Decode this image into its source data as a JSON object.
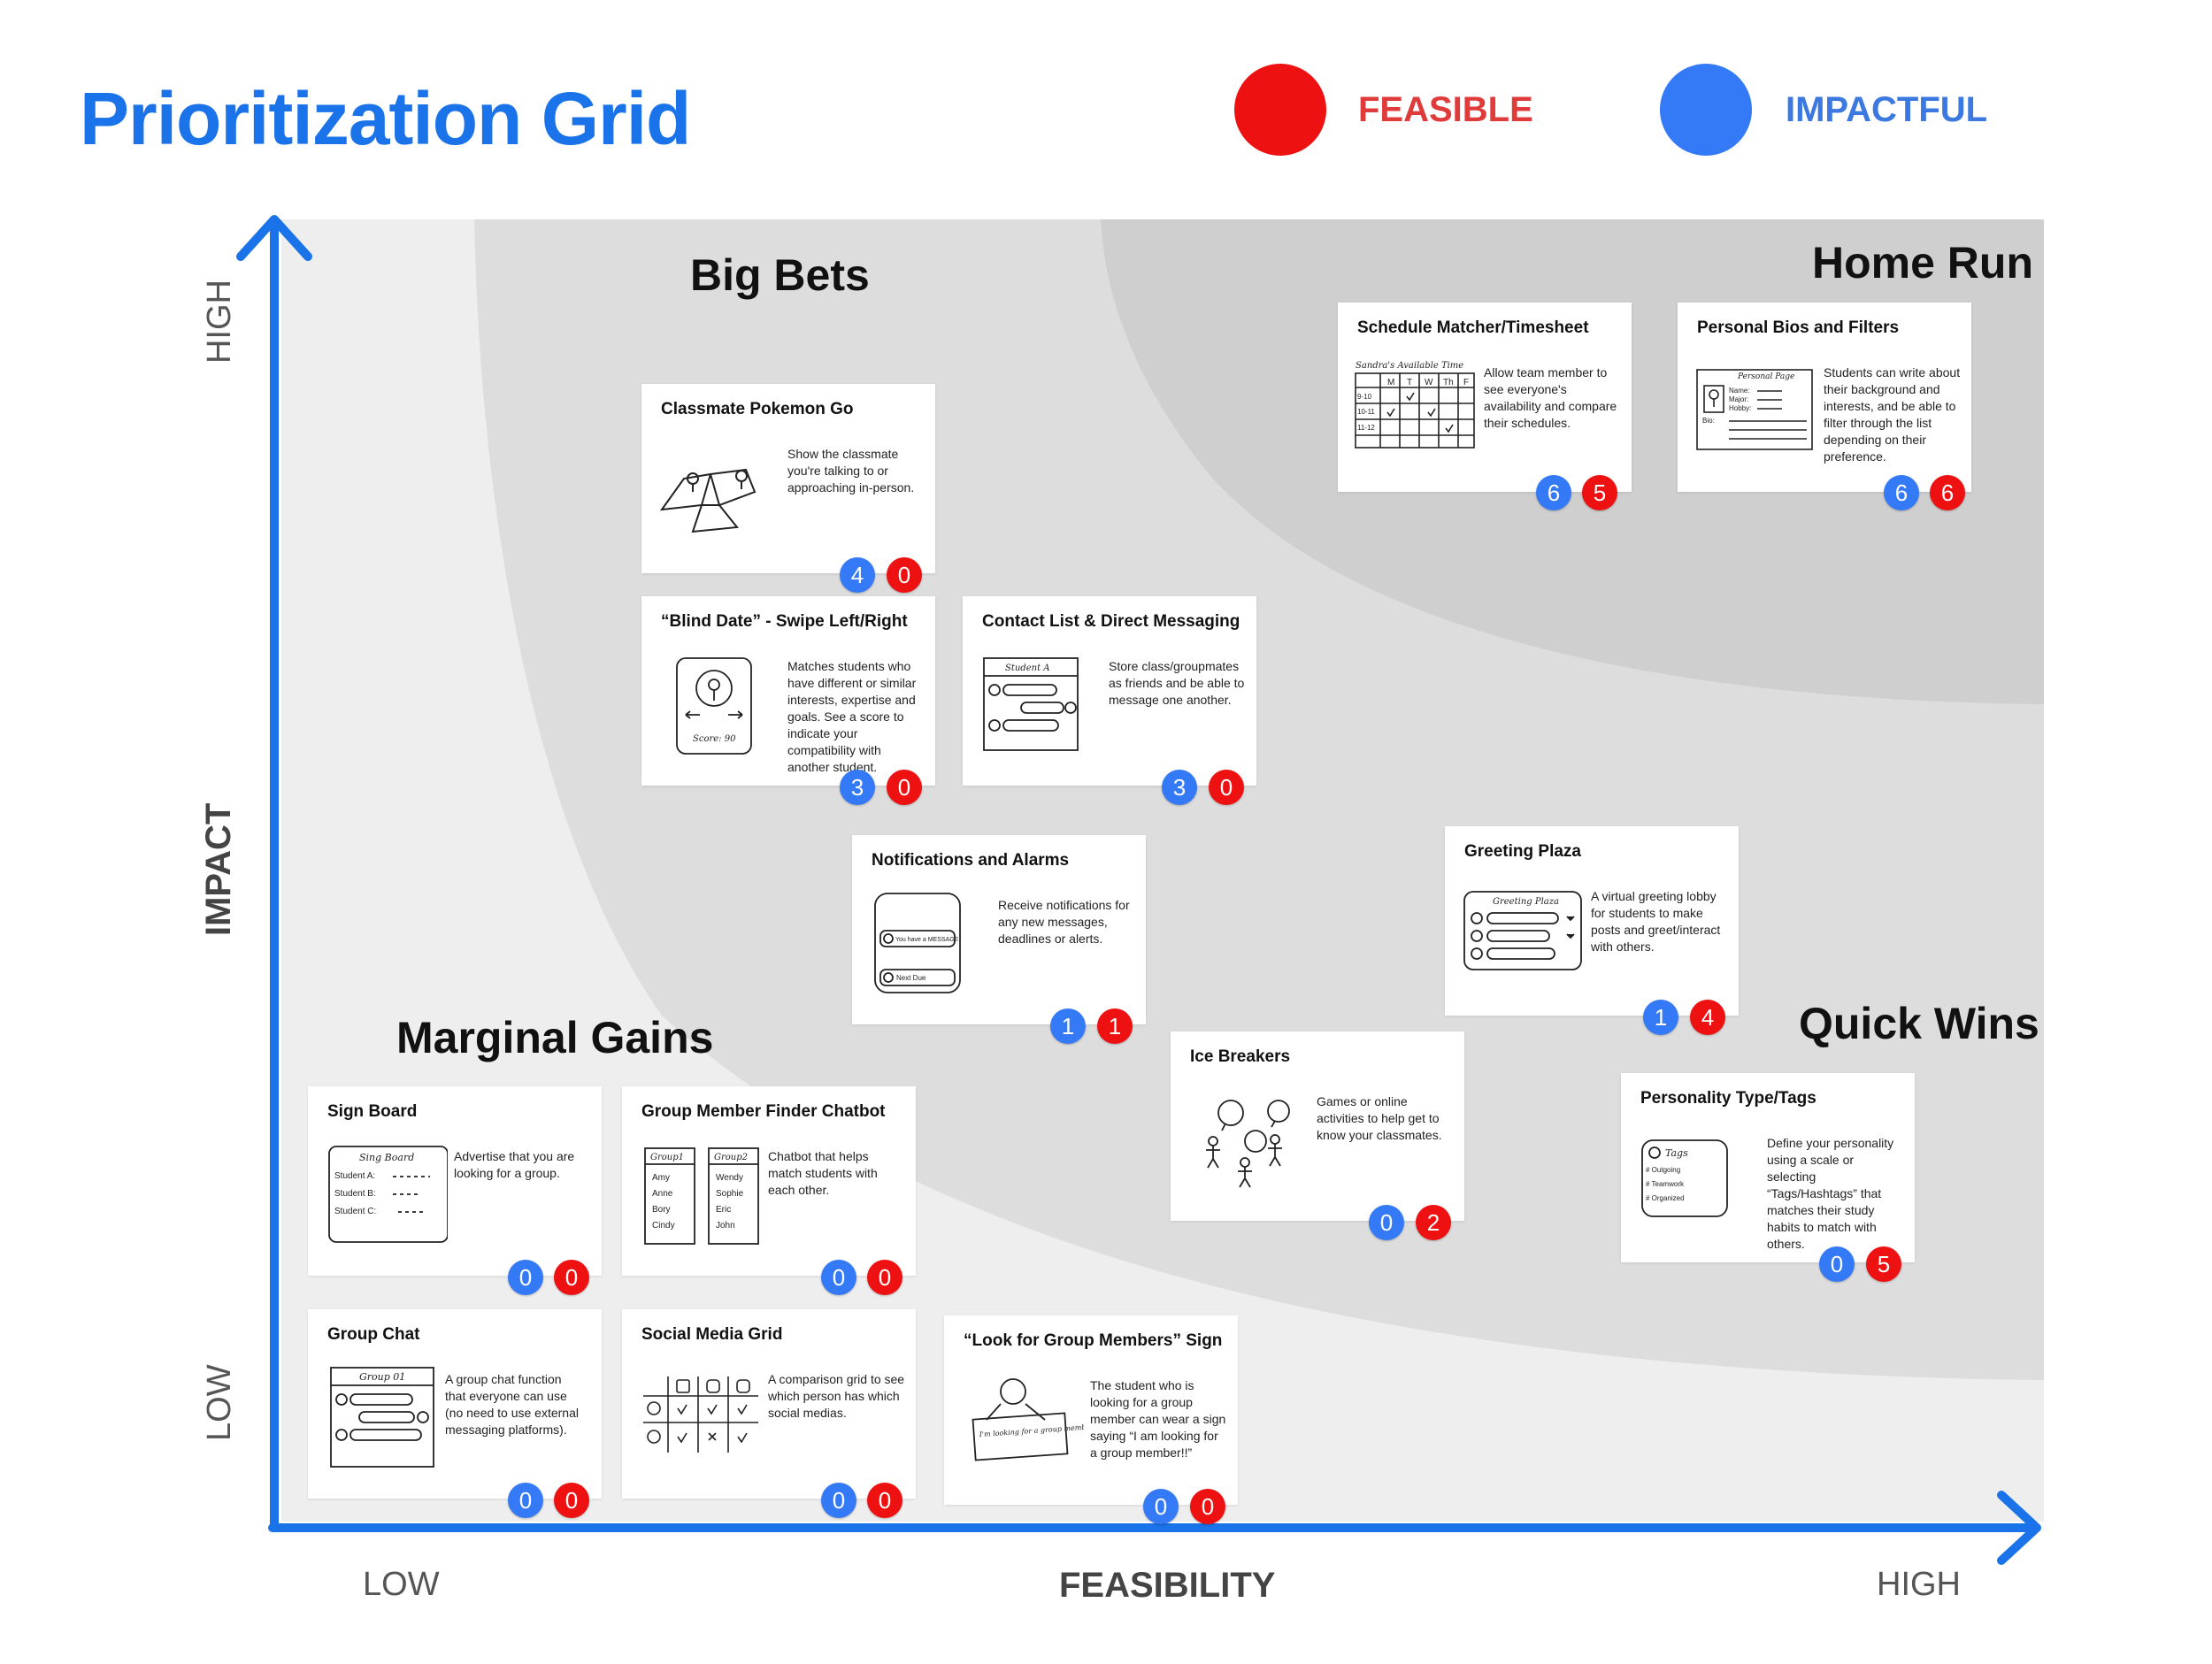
{
  "title": "Prioritization Grid",
  "legend": [
    {
      "label": "FEASIBLE",
      "color": "#ee1111",
      "text_color": "#e03b3b"
    },
    {
      "label": "IMPACTFUL",
      "color": "#3479f6",
      "text_color": "#3b78e0"
    }
  ],
  "axes": {
    "y_label": "IMPACT",
    "y_high": "HIGH",
    "y_low": "LOW",
    "x_label": "FEASIBILITY",
    "x_low": "LOW",
    "x_high": "HIGH",
    "color": "#1a73e8"
  },
  "zones": {
    "big_bets": "Big Bets",
    "home_run": "Home Run",
    "marginal_gains": "Marginal Gains",
    "quick_wins": "Quick Wins"
  },
  "zone_colors": {
    "outer": "#eeeeee",
    "middle": "#dddddd",
    "inner": "#cfcfcf"
  },
  "cards": [
    {
      "title": "Classmate Pokemon Go",
      "desc": "Show the classmate you're talking to or approaching in-person.",
      "impactful": "4",
      "feasible": "0",
      "sketch": "map-sketch"
    },
    {
      "title": "Schedule Matcher/Timesheet",
      "desc": "Allow team member to see everyone's availability and compare their schedules.",
      "impactful": "6",
      "feasible": "5",
      "sketch": "schedule-table-sketch"
    },
    {
      "title": "Personal Bios and Filters",
      "desc": "Students can write about their background and interests, and be able to filter through the list depending on their preference.",
      "impactful": "6",
      "feasible": "6",
      "sketch": "profile-page-sketch"
    },
    {
      "title": "“Blind Date” - Swipe Left/Right",
      "desc": "Matches students who have different or similar interests, expertise and goals. See a score to indicate your compatibility with another student.",
      "impactful": "3",
      "feasible": "0",
      "sketch": "swipe-card-sketch"
    },
    {
      "title": "Contact List & Direct Messaging",
      "desc": "Store class/groupmates as friends and be able to message one another.",
      "impactful": "3",
      "feasible": "0",
      "sketch": "chat-window-sketch"
    },
    {
      "title": "Notifications and Alarms",
      "desc": "Receive notifications for any new messages, deadlines or alerts.",
      "impactful": "1",
      "feasible": "1",
      "sketch": "phone-notification-sketch"
    },
    {
      "title": "Greeting Plaza",
      "desc": "A virtual greeting lobby for students to make posts and greet/interact with others.",
      "impactful": "1",
      "feasible": "4",
      "sketch": "greeting-board-sketch"
    },
    {
      "title": "Ice Breakers",
      "desc": "Games or online activities to help get to know your classmates.",
      "impactful": "0",
      "feasible": "2",
      "sketch": "people-talking-sketch"
    },
    {
      "title": "Personality Type/Tags",
      "desc": "Define your personality using a scale or selecting “Tags/Hashtags” that matches their study habits to match with others.",
      "impactful": "0",
      "feasible": "5",
      "sketch": "tags-sketch"
    },
    {
      "title": "Sign Board",
      "desc": "Advertise that you are looking for a group.",
      "impactful": "0",
      "feasible": "0",
      "sketch": "sign-board-sketch"
    },
    {
      "title": "Group Member Finder Chatbot",
      "desc": "Chatbot that helps match students with each other.",
      "impactful": "0",
      "feasible": "0",
      "sketch": "group-lists-sketch"
    },
    {
      "title": "Group Chat",
      "desc": "A group chat function that everyone can use (no need to use external messaging platforms).",
      "impactful": "0",
      "feasible": "0",
      "sketch": "group-chat-sketch"
    },
    {
      "title": "Social Media Grid",
      "desc": "A comparison grid to see which person has which social medias.",
      "impactful": "0",
      "feasible": "0",
      "sketch": "social-grid-sketch"
    },
    {
      "title": "“Look for Group Members” Sign",
      "desc": "The student who is looking for a group member can wear a sign saying “I am looking for a group member!!”",
      "impactful": "0",
      "feasible": "0",
      "sketch": "person-sign-sketch"
    }
  ],
  "sketch_text": {
    "schedule_caption": "Sandra's Available Time",
    "schedule_days": [
      "M",
      "T",
      "W",
      "Th",
      "F"
    ],
    "schedule_times": [
      "9-10",
      "10-11",
      "11-12"
    ],
    "profile_caption": "Personal Page",
    "profile_fields": [
      "Name:",
      "Major:",
      "Hobby:",
      "Bio:"
    ],
    "swipe_score": "Score: 90",
    "chat_header": "Student A",
    "notif_1": "You have a MESSAGE",
    "notif_2": "Next Due",
    "plaza_caption": "Greeting Plaza",
    "tags_caption": "Tags",
    "tags": [
      "# Outgoing",
      "# Teamwork",
      "# Organized"
    ],
    "sign_caption": "Sing Board",
    "sign_rows": [
      "Student A:",
      "Student B:",
      "Student C:"
    ],
    "group1": "Group1",
    "group2": "Group2",
    "group1_names": [
      "Amy",
      "Anne",
      "Bory",
      "Cindy"
    ],
    "group2_names": [
      "Wendy",
      "Sophie",
      "Eric",
      "John"
    ],
    "groupchat_caption": "Group 01",
    "person_sign": "I'm looking for a group member"
  }
}
